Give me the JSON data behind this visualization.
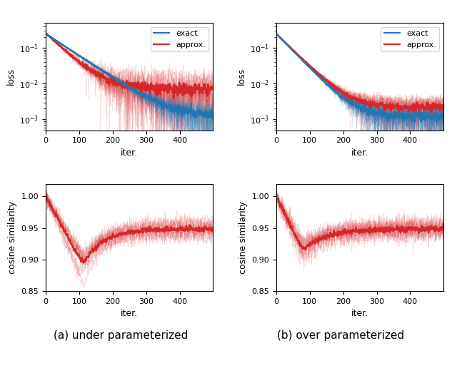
{
  "n_iters": 500,
  "seed": 42,
  "title_a": "(a) under parameterized",
  "title_b": "(b) over parameterized",
  "xlabel": "iter.",
  "ylabel_loss": "loss",
  "ylabel_cosine": "cosine similarity",
  "legend_exact": "exact",
  "legend_approx": "approx.",
  "color_exact": "#1f77b4",
  "color_approx": "#d62728",
  "ylim_loss": [
    0.0005,
    0.5
  ],
  "ylim_cosine": [
    0.85,
    1.02
  ],
  "yticks_cosine": [
    0.85,
    0.9,
    0.95,
    1.0
  ],
  "n_runs": 10,
  "alpha_runs": 0.18,
  "lw_main": 1.8,
  "lw_run": 0.6
}
